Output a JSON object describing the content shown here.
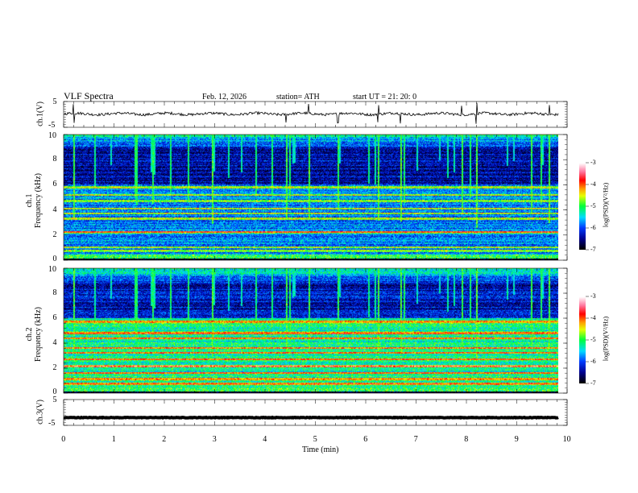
{
  "header": {
    "title": "VLF  Spectra",
    "date": "Feb. 12, 2026",
    "station": "station= ATH",
    "start": "start  UT  =    21: 20: 0"
  },
  "chart_data": [
    {
      "type": "line",
      "name": "ch1",
      "ylabel": "ch.1(V)",
      "ylim": [
        -5,
        5
      ],
      "yticks": [
        "5",
        "-5"
      ],
      "xlim": [
        0,
        10
      ],
      "mean": 0.2,
      "noise": 0.5,
      "duration_min": 9.83
    },
    {
      "type": "heatmap",
      "name": "spectrogram-ch1",
      "ylabel": "ch.1\nFrequency (kHz)",
      "ylabel_lines": [
        "ch.1",
        "Frequency  (kHz)"
      ],
      "ylim": [
        0,
        10
      ],
      "yticks": [
        "0",
        "2",
        "4",
        "6",
        "8",
        "10"
      ],
      "colorbar": {
        "label": "log(PSD)(V²/Hz)",
        "range": [
          -7,
          -3
        ],
        "ticks": [
          "-3",
          "-4",
          "-5",
          "-6",
          "-7"
        ]
      },
      "base_low": -5.8,
      "base_high": -6.4,
      "bands_khz": [
        0.7,
        1.0,
        2.2,
        3.3,
        3.7,
        4.1,
        4.7,
        5.2,
        5.8
      ],
      "sferic_rate": 0.18
    },
    {
      "type": "heatmap",
      "name": "spectrogram-ch2",
      "ylabel_lines": [
        "ch.2",
        "Frequency  (kHz)"
      ],
      "ylim": [
        0,
        10
      ],
      "yticks": [
        "0",
        "2",
        "4",
        "6",
        "8",
        "10"
      ],
      "colorbar": {
        "label": "log(PSD)(V²/Hz)",
        "range": [
          -7,
          -3
        ],
        "ticks": [
          "-3",
          "-4",
          "-5",
          "-6",
          "-7"
        ]
      },
      "base_low": -5.2,
      "base_high": -6.3,
      "bands_khz": [
        0.7,
        1.1,
        1.6,
        2.1,
        2.7,
        3.2,
        3.6,
        4.4,
        4.8,
        5.7
      ],
      "sferic_rate": 0.18
    },
    {
      "type": "line",
      "name": "ch3",
      "ylabel": "ch.3(V)",
      "ylim": [
        -5,
        5
      ],
      "yticks": [
        "5",
        "-5"
      ],
      "xlim": [
        0,
        10
      ],
      "mean": -2,
      "noise": 0.1,
      "duration_min": 9.83
    }
  ],
  "xaxis": {
    "label": "Time  (min)",
    "ticks": [
      "0",
      "1",
      "2",
      "3",
      "4",
      "5",
      "6",
      "7",
      "8",
      "9",
      "10"
    ]
  }
}
